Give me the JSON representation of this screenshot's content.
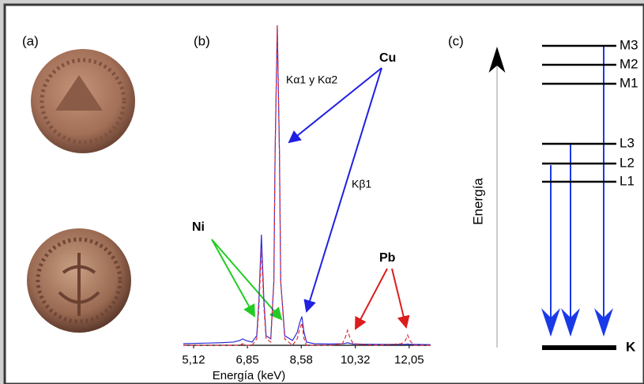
{
  "panel_a": {
    "label": "(a)"
  },
  "chart_data": {
    "type": "line",
    "panel_label": "(b)",
    "x_label": "Energía (keV)",
    "xlim": [
      4.79,
      12.74
    ],
    "ylim": [
      0,
      100
    ],
    "xticks": [
      {
        "value": 5.12,
        "label": "5,12"
      },
      {
        "value": 6.85,
        "label": "6,85"
      },
      {
        "value": 8.58,
        "label": "8,58"
      },
      {
        "value": 10.32,
        "label": "10,32"
      },
      {
        "value": 12.05,
        "label": "12,05"
      }
    ],
    "x": [
      4.79,
      5.2,
      5.6,
      6.0,
      6.4,
      6.6,
      6.7,
      6.8,
      7.0,
      7.15,
      7.22,
      7.3,
      7.38,
      7.45,
      7.6,
      7.7,
      7.74,
      7.81,
      7.88,
      7.92,
      8.05,
      8.3,
      8.45,
      8.53,
      8.6,
      8.67,
      8.75,
      9.0,
      9.5,
      9.9,
      10.0,
      10.07,
      10.14,
      10.25,
      11.0,
      11.8,
      11.93,
      12.0,
      12.07,
      12.2,
      12.74
    ],
    "series": [
      {
        "color": "#2b2bd9",
        "dash": false,
        "values": [
          0.5,
          0.6,
          0.7,
          0.8,
          1,
          1.5,
          2,
          1.5,
          1,
          3,
          14,
          34.6,
          14,
          3,
          2,
          20,
          60,
          100,
          60,
          20,
          3,
          1.5,
          4,
          7,
          9,
          4,
          1,
          0.5,
          0.4,
          0.5,
          0.6,
          0.8,
          0.6,
          0.4,
          0.3,
          0.3,
          0.3,
          0.4,
          0.3,
          0.3,
          0.2
        ]
      },
      {
        "color": "#e0303a",
        "dash": true,
        "values": [
          0,
          0,
          0,
          0,
          0,
          0,
          0.5,
          0,
          0,
          2,
          12,
          30,
          12,
          2,
          1,
          20,
          60,
          100,
          60,
          20,
          2,
          0,
          2,
          5,
          7,
          2,
          0,
          0,
          0,
          0.5,
          2.5,
          4.7,
          2.5,
          0.5,
          0,
          0.5,
          1.5,
          3.2,
          1.5,
          0,
          0
        ]
      }
    ],
    "annotations": [
      {
        "text": "Cu",
        "color": "#1a1aee"
      },
      {
        "text": "Kα1 y Kα2",
        "color": "#000000"
      },
      {
        "text": "Kβ1",
        "color": "#000000"
      },
      {
        "text": "Ni",
        "color": "#22cc22"
      },
      {
        "text": "Pb",
        "color": "#000000"
      }
    ]
  },
  "diagram": {
    "label": "(c)",
    "axis_label": "Energía",
    "levels": [
      "M3",
      "M2",
      "M1",
      "L3",
      "L2",
      "L1",
      "K"
    ]
  }
}
